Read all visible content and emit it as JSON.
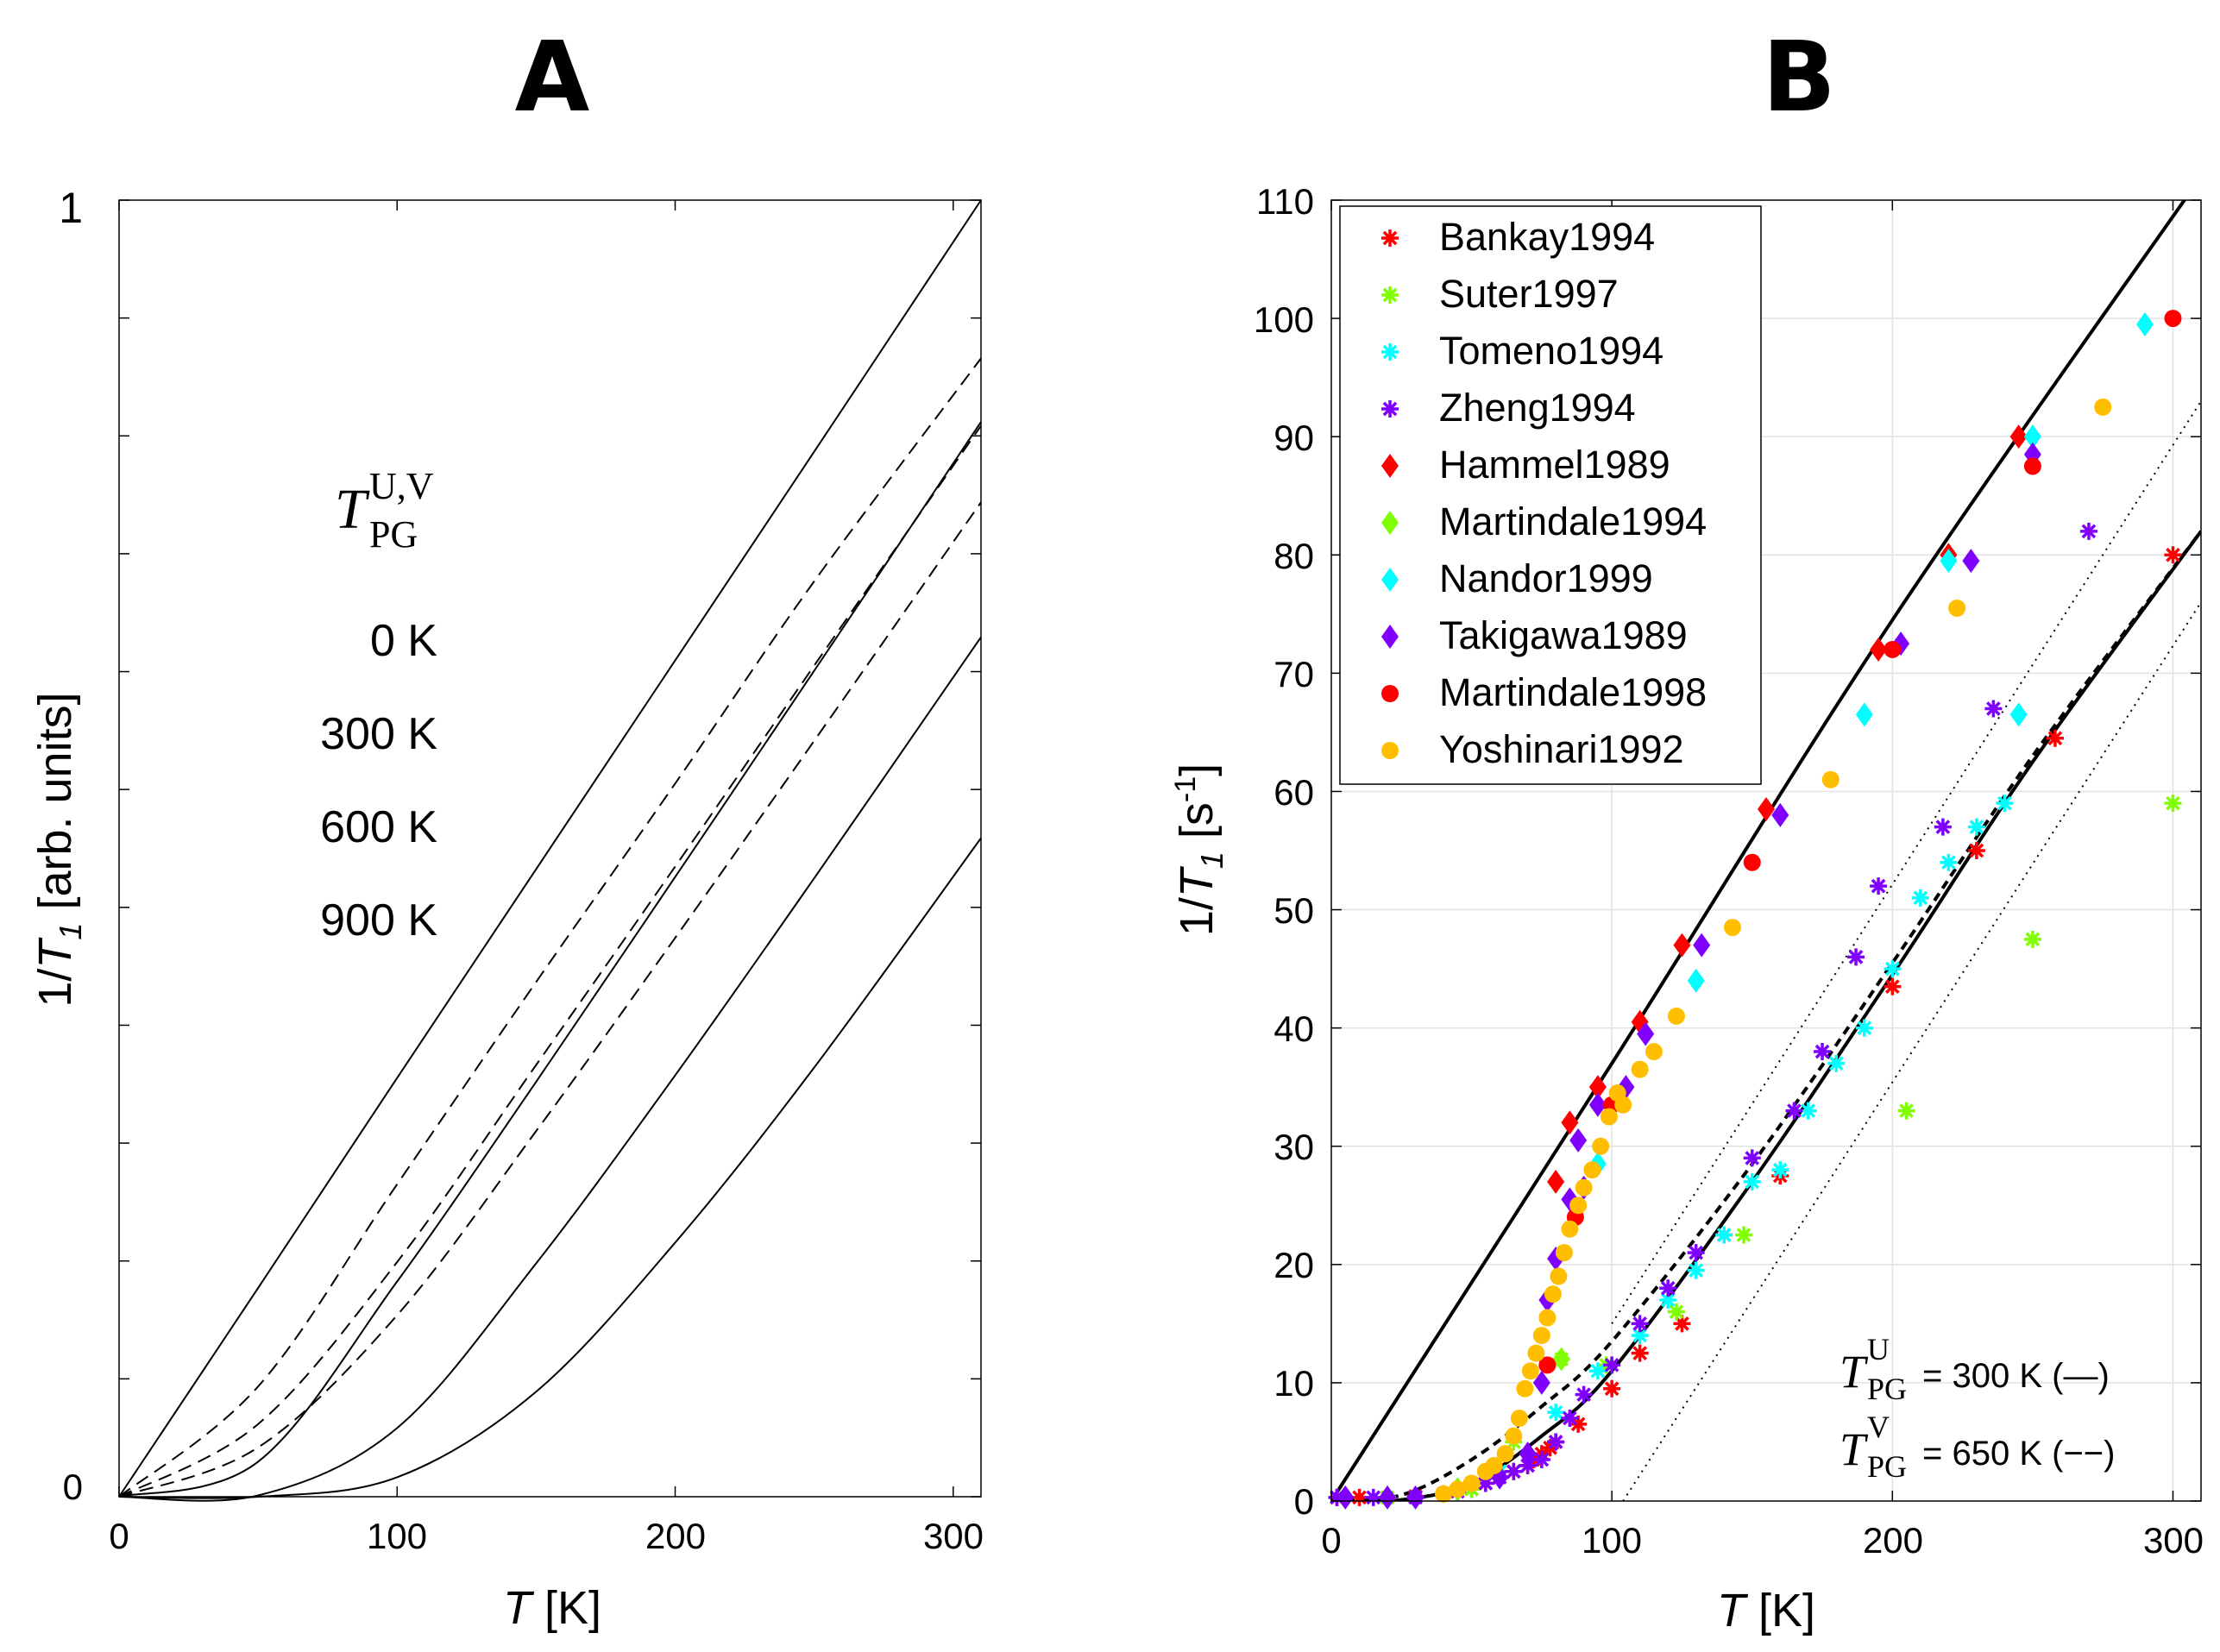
{
  "panels": {
    "a": {
      "label": "A",
      "ylabel": "1/T1 [arb. units]",
      "ylabel_parts": {
        "pre": "1/",
        "var": "T",
        "sub": "1",
        "post": " [arb. units]"
      },
      "xlabel": "T [K]",
      "xlabel_parts": {
        "var": "T",
        "post": " [K]"
      },
      "xticks": [
        "0",
        "100",
        "200",
        "300"
      ],
      "yticks": [
        "0",
        "1"
      ],
      "annotation": {
        "symbol": "T",
        "superscript": "U,V",
        "subscript": "PG"
      },
      "gap_labels": [
        "0 K",
        "300 K",
        "600 K",
        "900 K"
      ]
    },
    "b": {
      "label": "B",
      "ylabel": "1/T1 [s-1]",
      "ylabel_parts": {
        "pre": "1/",
        "var": "T",
        "sub": "1",
        "post1": " [s",
        "sup": "-1",
        "post2": "]"
      },
      "xlabel": "T [K]",
      "xlabel_parts": {
        "var": "T",
        "post": " [K]"
      },
      "xticks": [
        "0",
        "100",
        "200",
        "300"
      ],
      "yticks": [
        "0",
        "10",
        "20",
        "30",
        "40",
        "50",
        "60",
        "70",
        "80",
        "90",
        "100",
        "110"
      ],
      "annotations": [
        {
          "symbol": "T",
          "superscript": "U",
          "subscript": "PG",
          "text": "= 300 K (—)"
        },
        {
          "symbol": "T",
          "superscript": "V",
          "subscript": "PG",
          "text": "= 650 K (−−)"
        }
      ]
    }
  },
  "colors": {
    "red": "#ff0000",
    "green": "#7fff00",
    "cyan": "#00ffff",
    "violet": "#7f00ff",
    "orange": "#ffbf00",
    "curve": "#000000"
  },
  "chart_data": [
    {
      "type": "line",
      "title": "A",
      "xlabel": "T [K]",
      "ylabel": "1/T1 [arb. units]",
      "xlim": [
        0,
        310
      ],
      "ylim": [
        0,
        1
      ],
      "grid": false,
      "series": [
        {
          "name": "T_PG = 0 K (solid)",
          "style": "solid",
          "gap_K": 0,
          "x": [
            0,
            50,
            100,
            150,
            200,
            250,
            310
          ],
          "values": [
            0,
            0.161,
            0.323,
            0.484,
            0.645,
            0.806,
            1.0
          ]
        },
        {
          "name": "T_PG = 300 K (solid)",
          "style": "solid",
          "gap_K": 300,
          "x": [
            0,
            50,
            100,
            150,
            200,
            250,
            310
          ],
          "values": [
            0,
            0.027,
            0.166,
            0.32,
            0.478,
            0.637,
            0.829
          ]
        },
        {
          "name": "T_PG = 600 K (solid)",
          "style": "solid",
          "gap_K": 600,
          "x": [
            0,
            50,
            100,
            150,
            200,
            250,
            310
          ],
          "values": [
            0,
            0.001,
            0.053,
            0.18,
            0.325,
            0.477,
            0.663
          ]
        },
        {
          "name": "T_PG = 900 K (solid)",
          "style": "solid",
          "gap_K": 900,
          "x": [
            0,
            50,
            100,
            150,
            200,
            250,
            310
          ],
          "values": [
            0,
            0,
            0.015,
            0.081,
            0.196,
            0.331,
            0.508
          ]
        },
        {
          "name": "T_PG = 300 K (dashed)",
          "style": "dashed",
          "gap_K": 300,
          "x": [
            0,
            50,
            100,
            150,
            200,
            250,
            310
          ],
          "values": [
            0,
            0.085,
            0.241,
            0.397,
            0.55,
            0.706,
            0.878
          ]
        },
        {
          "name": "T_PG = 600 K (dashed)",
          "style": "dashed",
          "gap_K": 600,
          "x": [
            0,
            50,
            100,
            150,
            200,
            250,
            310
          ],
          "values": [
            0,
            0.056,
            0.181,
            0.333,
            0.486,
            0.641,
            0.826
          ]
        },
        {
          "name": "T_PG = 900 K (dashed)",
          "style": "dashed",
          "gap_K": 900,
          "x": [
            0,
            50,
            100,
            150,
            200,
            250,
            310
          ],
          "values": [
            0,
            0.038,
            0.14,
            0.282,
            0.431,
            0.583,
            0.767
          ]
        }
      ]
    },
    {
      "type": "scatter",
      "title": "B",
      "xlabel": "T [K]",
      "ylabel": "1/T1 [s-1]",
      "xlim": [
        0,
        310
      ],
      "ylim": [
        0,
        110
      ],
      "grid": true,
      "legend": "top-left",
      "series": [
        {
          "name": "Bankay1994",
          "marker": "asterisk",
          "color": "#ff0000",
          "x": [
            2,
            10,
            20,
            30,
            40,
            50,
            55,
            60,
            65,
            70,
            72,
            75,
            78,
            80,
            88,
            100,
            110,
            125,
            140,
            160,
            200,
            230,
            258,
            300
          ],
          "values": [
            0.3,
            0.3,
            0.3,
            0.4,
            0.6,
            1.0,
            1.5,
            2.0,
            2.5,
            3.0,
            3.5,
            4.0,
            4.5,
            5.0,
            6.5,
            9.5,
            12.5,
            15.0,
            22.5,
            27.5,
            43.5,
            55.0,
            64.5,
            80.0
          ]
        },
        {
          "name": "Suter1997",
          "marker": "asterisk",
          "color": "#7fff00",
          "x": [
            20,
            50,
            65,
            82,
            98,
            123,
            147,
            205,
            250,
            300
          ],
          "values": [
            0.3,
            1.0,
            5.0,
            12.0,
            11.5,
            16.0,
            22.5,
            33.0,
            47.5,
            59.0
          ]
        },
        {
          "name": "Tomeno1994",
          "marker": "asterisk",
          "color": "#00ffff",
          "x": [
            30,
            60,
            80,
            95,
            110,
            120,
            130,
            140,
            150,
            160,
            170,
            180,
            190,
            200,
            210,
            220,
            230,
            240
          ],
          "values": [
            0.3,
            2.5,
            7.5,
            11.0,
            14.0,
            17.0,
            19.5,
            22.5,
            27.0,
            28.0,
            33.0,
            37.0,
            40.0,
            45.0,
            51.0,
            54.0,
            57.0,
            59.0
          ]
        },
        {
          "name": "Zheng1994",
          "marker": "asterisk",
          "color": "#7f00ff",
          "x": [
            2,
            15,
            30,
            45,
            55,
            60,
            65,
            70,
            75,
            80,
            85,
            90,
            100,
            110,
            120,
            130,
            150,
            165,
            175,
            187,
            195,
            218,
            236,
            270
          ],
          "values": [
            0.3,
            0.3,
            0.3,
            0.8,
            1.5,
            2.0,
            2.5,
            3.0,
            3.5,
            5.0,
            7.0,
            9.0,
            11.5,
            15.0,
            18.0,
            21.0,
            29.0,
            33.0,
            38.0,
            46.0,
            52.0,
            57.0,
            67.0,
            82.0
          ]
        },
        {
          "name": "Hammel1989",
          "marker": "diamond",
          "color": "#ff0000",
          "x": [
            80,
            85,
            95,
            110,
            125,
            155,
            195,
            220,
            245
          ],
          "values": [
            27.0,
            32.0,
            35.0,
            40.5,
            47.0,
            58.5,
            72.0,
            80.0,
            90.0
          ]
        },
        {
          "name": "Martindale1994",
          "marker": "diamond",
          "color": "#7fff00",
          "x": [
            20,
            45,
            82
          ],
          "values": [
            0.3,
            1.0,
            12.0
          ]
        },
        {
          "name": "Nandor1999",
          "marker": "diamond",
          "color": "#00ffff",
          "x": [
            95,
            130,
            160,
            190,
            220,
            245,
            250,
            290
          ],
          "values": [
            28.5,
            44.0,
            58.0,
            66.5,
            79.5,
            66.5,
            90.0,
            99.5
          ]
        },
        {
          "name": "Takigawa1989",
          "marker": "diamond",
          "color": "#7f00ff",
          "x": [
            5,
            20,
            30,
            60,
            70,
            75,
            77,
            80,
            85,
            88,
            90,
            95,
            105,
            112,
            132,
            160,
            203,
            228,
            250
          ],
          "values": [
            0.3,
            0.3,
            0.3,
            2.0,
            4.0,
            10.0,
            17.0,
            20.5,
            25.5,
            30.5,
            26.5,
            33.5,
            35.0,
            39.5,
            47.0,
            58.0,
            72.5,
            79.5,
            88.5
          ]
        },
        {
          "name": "Martindale1998",
          "marker": "circle",
          "color": "#ff0000",
          "x": [
            77,
            87,
            100,
            150,
            200,
            250,
            300
          ],
          "values": [
            11.5,
            24.0,
            33.5,
            54.0,
            72.0,
            87.5,
            100.0
          ]
        },
        {
          "name": "Yoshinari1992",
          "marker": "circle",
          "color": "#ffbf00",
          "x": [
            40,
            45,
            50,
            55,
            58,
            62,
            65,
            67,
            69,
            71,
            73,
            75,
            77,
            79,
            81,
            83,
            85,
            88,
            90,
            93,
            96,
            99,
            102,
            104,
            110,
            115,
            123,
            143,
            178,
            223,
            275
          ],
          "values": [
            0.6,
            1.0,
            1.5,
            2.5,
            3.0,
            4.0,
            5.5,
            7.0,
            9.5,
            11.0,
            12.5,
            14.0,
            15.5,
            17.5,
            19.0,
            21.0,
            23.0,
            25.0,
            26.5,
            28.0,
            30.0,
            32.5,
            34.5,
            33.5,
            36.5,
            38.0,
            41.0,
            48.5,
            61.0,
            75.5,
            92.5
          ]
        }
      ],
      "curves": [
        {
          "name": "Gap 0 K (upper solid)",
          "style": "solid",
          "x": [
            0,
            100,
            200,
            310
          ],
          "values": [
            0,
            37.0,
            74.5,
            112.0
          ]
        },
        {
          "name": "T_PG^U = 300 K (solid)",
          "style": "solid",
          "gap_K": 300,
          "x": [
            0,
            25,
            50,
            75,
            100,
            150,
            200,
            250,
            310
          ],
          "values": [
            0,
            0.1,
            1.5,
            5.5,
            11.0,
            27.0,
            44.5,
            62.5,
            82.0
          ]
        },
        {
          "name": "T_PG^V = 650 K (dashed)",
          "style": "dashed",
          "gap_K": 650,
          "x": [
            0,
            25,
            50,
            75,
            100,
            150,
            200,
            250,
            310
          ],
          "values": [
            0,
            0.5,
            3.5,
            8.0,
            13.5,
            28.5,
            45.5,
            63.0,
            82.0
          ]
        },
        {
          "name": "dotted guide 1",
          "style": "dotted",
          "x": [
            100,
            310
          ],
          "values": [
            15.0,
            93.0
          ]
        },
        {
          "name": "dotted guide 2",
          "style": "dotted",
          "x": [
            104,
            310
          ],
          "values": [
            0,
            76.0
          ]
        }
      ]
    }
  ]
}
